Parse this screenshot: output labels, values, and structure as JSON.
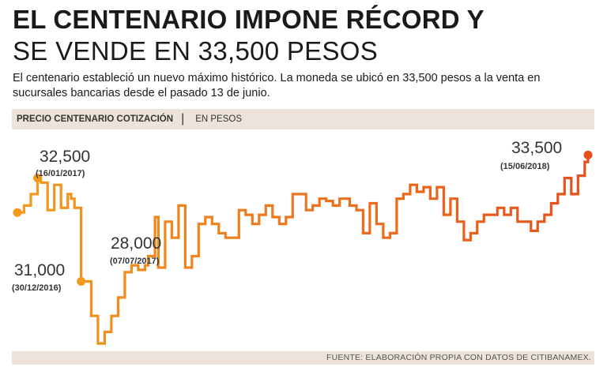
{
  "header": {
    "title_line1": "EL CENTENARIO IMPONE RÉCORD Y",
    "title_line2": "SE VENDE EN 33,500 PESOS",
    "subtitle": "El centenario estableció un nuevo máximo histórico. La moneda se ubicó en 33,500 pesos a la venta en sucursales bancarias desde el pasado 13 de junio."
  },
  "chart_header": {
    "label": "PRECIO CENTENARIO COTIZACIÓN",
    "separator": "|",
    "unit": "EN PESOS"
  },
  "footer": {
    "source": "FUENTE: ELABORACIÓN PROPIA CON DATOS DE CITIBANAMEX."
  },
  "chart_data": {
    "type": "line",
    "title": "PRECIO CENTENARIO COTIZACIÓN",
    "ylabel": "EN PESOS",
    "x_range": [
      "30/12/2016",
      "15/06/2018"
    ],
    "ylim": [
      25200,
      34200
    ],
    "grid": false,
    "gradient_colors": [
      "#f39a1e",
      "#e8501a"
    ],
    "values": [
      31000,
      31000,
      31300,
      31300,
      31800,
      31800,
      32500,
      32300,
      32300,
      31100,
      31100,
      32200,
      32200,
      31200,
      31200,
      31800,
      31600,
      31200,
      31200,
      28000,
      28000,
      28000,
      26500,
      26500,
      25300,
      25300,
      25800,
      25800,
      26500,
      26500,
      27300,
      27300,
      28400,
      28400,
      28700,
      28700,
      28500,
      28500,
      28700,
      29100,
      29100,
      30800,
      28600,
      28600,
      30600,
      30600,
      29900,
      29900,
      31300,
      31300,
      28600,
      28600,
      29100,
      29100,
      30500,
      30500,
      30800,
      30800,
      30500,
      30500,
      30100,
      30100,
      29900,
      29900,
      29900,
      29900,
      31100,
      31100,
      30900,
      30900,
      30500,
      30500,
      30900,
      30900,
      31300,
      31300,
      30800,
      30800,
      30500,
      30500,
      30800,
      30800,
      31800,
      31800,
      31800,
      31800,
      31100,
      31100,
      31300,
      31300,
      31600,
      31600,
      31500,
      31500,
      31300,
      31300,
      31600,
      31600,
      31600,
      31300,
      31300,
      31100,
      31100,
      30100,
      30100,
      31400,
      31400,
      30500,
      30500,
      29900,
      29900,
      30100,
      30100,
      31600,
      31600,
      31800,
      31800,
      32200,
      32200,
      31900,
      31900,
      32100,
      32100,
      31600,
      31600,
      32100,
      32100,
      30900,
      30900,
      31600,
      31600,
      30600,
      30600,
      29800,
      29800,
      30100,
      30100,
      30600,
      30600,
      30900,
      30900,
      30900,
      30900,
      31200,
      31200,
      30900,
      30900,
      31200,
      31200,
      30600,
      30600,
      30600,
      30600,
      30200,
      30200,
      30600,
      30600,
      30900,
      30900,
      31400,
      31400,
      31800,
      31800,
      32500,
      32500,
      31800,
      31800,
      32600,
      32600,
      33200,
      33500
    ],
    "annotations": [
      {
        "value": "32,500",
        "date": "(16/01/2017)"
      },
      {
        "value": "31,000",
        "date": "(30/12/2016)"
      },
      {
        "value": "28,000",
        "date": "(07/07/2017)"
      },
      {
        "value": "33,500",
        "date": "(15/06/2018)"
      }
    ]
  }
}
